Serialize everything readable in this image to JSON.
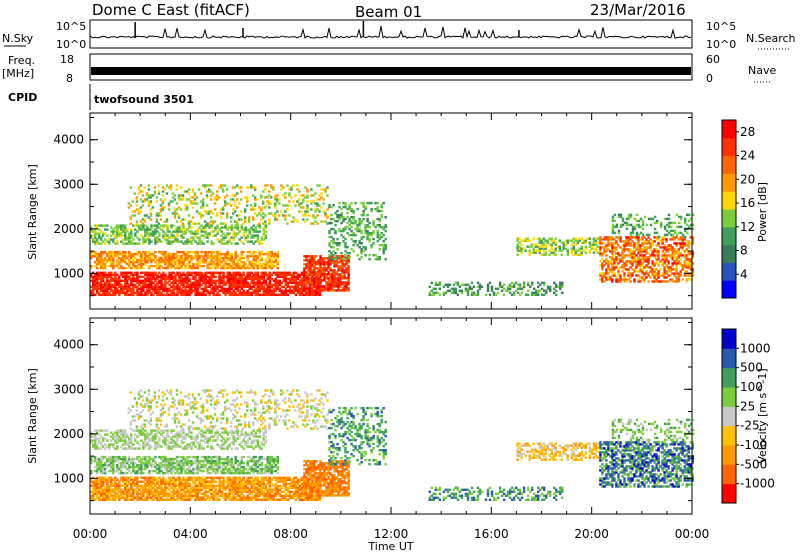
{
  "header": {
    "station": "Dome C East (fitACF)",
    "beam": "Beam 01",
    "date": "23/Mar/2016"
  },
  "strip_labels": {
    "nsky": "N.Sky",
    "nsky_ticks": [
      "10^5",
      "10^0"
    ],
    "nsearch": "N.Search",
    "nsearch_ticks": [
      "10^5",
      "10^0"
    ],
    "freq": "Freq.",
    "freq_unit": "[MHz]",
    "freq_ticks": [
      "18",
      "8"
    ],
    "nave": "Nave",
    "nave_ticks": [
      "60",
      "0"
    ],
    "cpid": "CPID",
    "cpid_value": "twofsound 3501"
  },
  "colors": {
    "power": [
      "#0000ff",
      "#2a52be",
      "#3a7d5a",
      "#3fa05a",
      "#7ccd3c",
      "#ffd700",
      "#ff9900",
      "#ff6600",
      "#ff3300",
      "#ff0000"
    ],
    "velocity": [
      "#ff0000",
      "#ff6600",
      "#ff9900",
      "#ffc000",
      "#c8c8c8",
      "#7ccd3c",
      "#3fa05a",
      "#2a5ab0",
      "#0000cc"
    ]
  },
  "chart_data": [
    {
      "type": "heatmap",
      "name": "power",
      "ylabel": "Slant Range [km]",
      "xlabel": "Time UT",
      "x_ticks": [
        "00:00",
        "04:00",
        "08:00",
        "12:00",
        "16:00",
        "20:00",
        "00:00"
      ],
      "y_ticks": [
        "1000",
        "2000",
        "3000",
        "4000"
      ],
      "ylim": [
        200,
        4600
      ],
      "xlim_hours": [
        0,
        24
      ],
      "colorbar_label": "Power [dB]",
      "colorbar_ticks": [
        "28",
        "24",
        "20",
        "16",
        "12",
        "8",
        "4"
      ],
      "colorbar_range": [
        0,
        30
      ]
    },
    {
      "type": "heatmap",
      "name": "velocity",
      "ylabel": "Slant Range [km]",
      "xlabel": "Time UT",
      "x_ticks": [
        "00:00",
        "04:00",
        "08:00",
        "12:00",
        "16:00",
        "20:00",
        "00:00"
      ],
      "y_ticks": [
        "1000",
        "2000",
        "3000",
        "4000"
      ],
      "ylim": [
        200,
        4600
      ],
      "xlim_hours": [
        0,
        24
      ],
      "colorbar_label": "Velocity [m s^-1]",
      "colorbar_ticks": [
        "1000",
        "500",
        "100",
        "25",
        "-25",
        "-100",
        "-500",
        "-1000"
      ]
    }
  ]
}
